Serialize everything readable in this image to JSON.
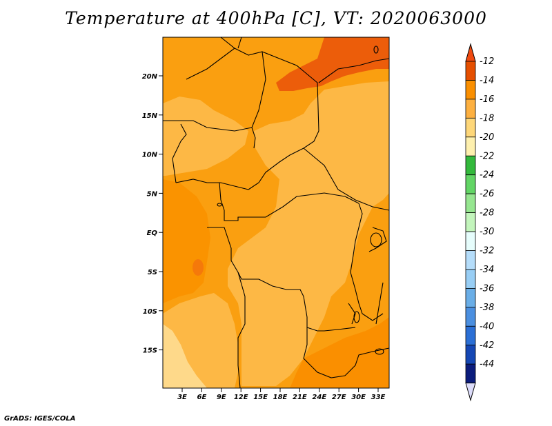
{
  "title": "Temperature at 400hPa [C], VT: 2020063000",
  "footer": "GrADS: IGES/COLA",
  "map": {
    "lat_labels": [
      "20N",
      "15N",
      "10N",
      "5N",
      "EQ",
      "5S",
      "10S",
      "15S"
    ],
    "lon_labels": [
      "3E",
      "6E",
      "9E",
      "12E",
      "15E",
      "18E",
      "21E",
      "24E",
      "27E",
      "30E",
      "33E"
    ],
    "lon_range": [
      0,
      34.5
    ],
    "lat_range": [
      -20,
      24.5
    ],
    "warmest_region": "northeast (Sahara / Sudan)",
    "coolest_region": "southwest coast (Angola / Namibia offshore)"
  },
  "colorbar": {
    "labels": [
      "-12",
      "-14",
      "-16",
      "-18",
      "-20",
      "-22",
      "-24",
      "-26",
      "-28",
      "-30",
      "-32",
      "-34",
      "-36",
      "-38",
      "-40",
      "-42",
      "-44"
    ],
    "colors": [
      "#e54f00",
      "#fa8f00",
      "#fdb040",
      "#fed779",
      "#fef0ae",
      "#33b93c",
      "#62d565",
      "#96e690",
      "#c3f5bc",
      "#e6fdfc",
      "#b5ddfa",
      "#98cef5",
      "#6aaee7",
      "#4b8fe0",
      "#2b6fd5",
      "#1547b4"
    ],
    "top_cap_color": "#f04a10",
    "bottom_cap_color": "#dcdcfa",
    "lowest_segment_color": "#0b1c7c"
  }
}
